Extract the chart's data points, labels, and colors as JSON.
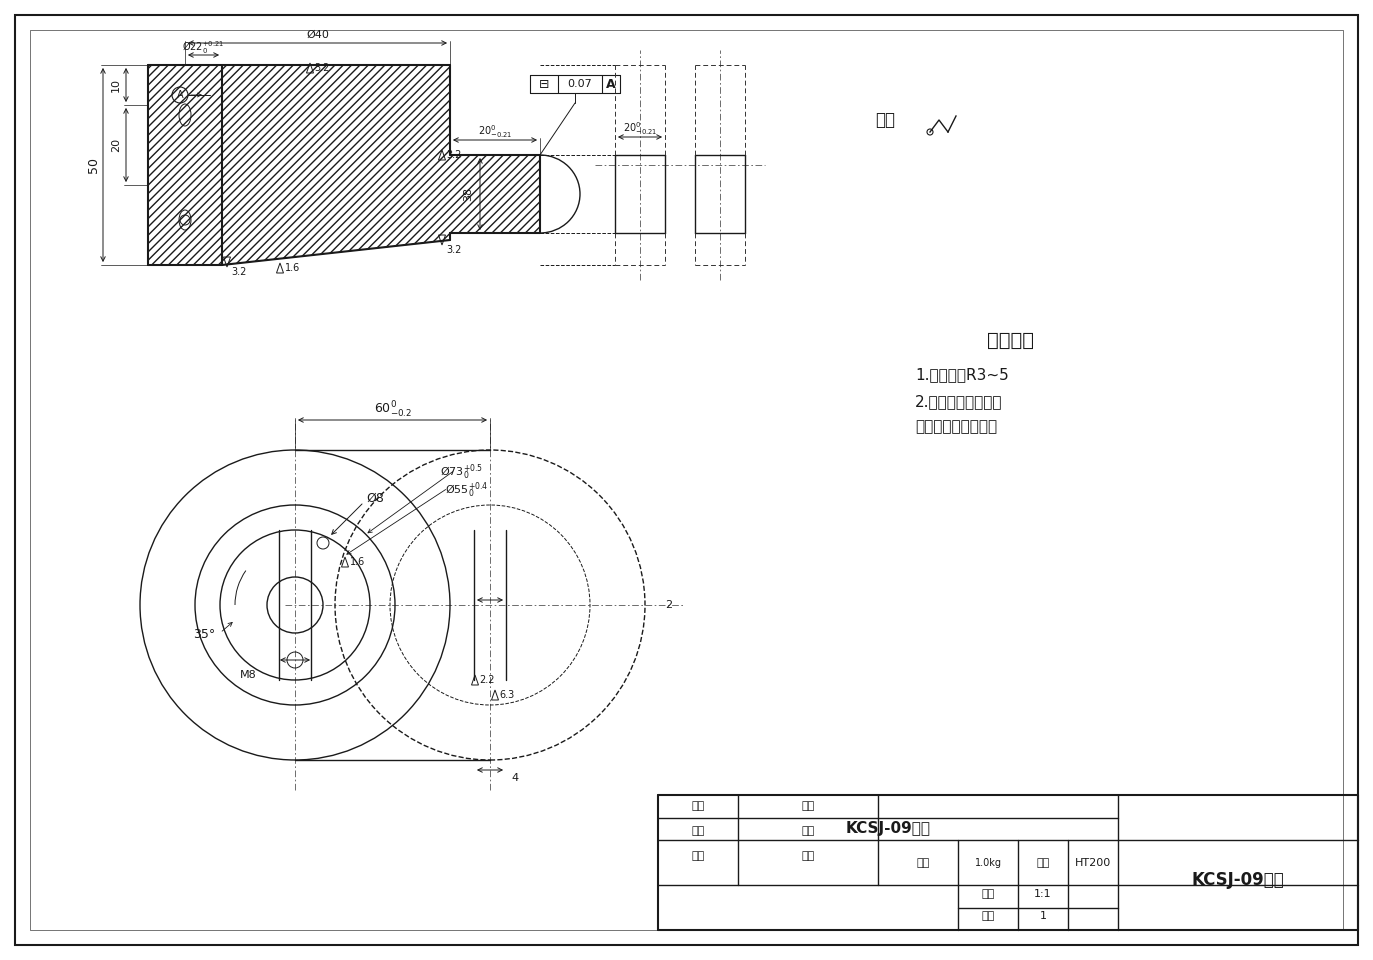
{
  "line_color": "#1a1a1a",
  "tech_req_title": "技术要求",
  "tech_req_1": "1.铸造圆角R3~5",
  "tech_req_2": "2.两件铸造在一起，",
  "tech_req_3": "表面应无夹渣，气孔",
  "qiyu": "其余",
  "scale": "1:1",
  "piece_count": "1",
  "weight": "1.0kg",
  "material": "HT200",
  "part_name": "KCSJ-09拨叉",
  "title_name": "KCSJ-09拨叉",
  "drawer_label": "制图",
  "class_label": "班级",
  "instructor_label": "指导",
  "title_label": "职称",
  "reviewer_label": "审核",
  "ratio_label": "比例",
  "pieces_label": "件数",
  "weight_label": "重量",
  "material_label": "材料"
}
